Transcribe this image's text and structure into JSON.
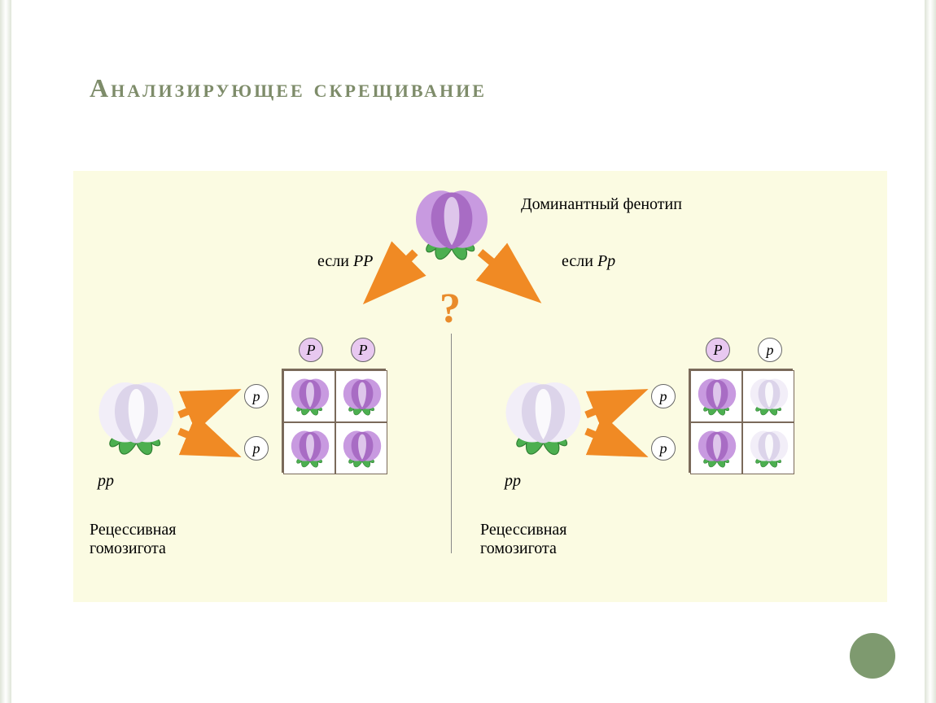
{
  "title": "Анализирующее скрещивание",
  "labels": {
    "dominant": "Доминантный фенотип",
    "ifPP": "если",
    "ifPP_g": "PP",
    "ifPp": "если",
    "ifPp_g": "Pp",
    "recessive": "Рецессивная\nгомозигота",
    "pp": "pp",
    "question": "?"
  },
  "colors": {
    "background": "#fbfbe2",
    "title": "#7e8c6a",
    "arrow": "#f08a24",
    "flower_purple_dark": "#a86cc4",
    "flower_purple_mid": "#c89ae0",
    "flower_purple_light": "#e8d6f2",
    "flower_white": "#f2eef8",
    "flower_white_shadow": "#dcd4ea",
    "leaf": "#4caf50",
    "leaf_dark": "#2e7d32",
    "gamete_purple_bg": "#e8c8f0",
    "gamete_white_bg": "#ffffff",
    "grid": "#7a6a5a",
    "qmark": "#e98b2b",
    "dot": "#7e9a6f"
  },
  "left": {
    "top_gametes": [
      "P",
      "P"
    ],
    "side_gametes": [
      "p",
      "p"
    ],
    "top_bg": [
      "purple",
      "purple"
    ],
    "cells": [
      [
        "purple",
        "purple"
      ],
      [
        "purple",
        "purple"
      ]
    ]
  },
  "right": {
    "top_gametes": [
      "P",
      "p"
    ],
    "side_gametes": [
      "p",
      "p"
    ],
    "top_bg": [
      "purple",
      "white"
    ],
    "cells": [
      [
        "purple",
        "white"
      ],
      [
        "purple",
        "white"
      ]
    ]
  }
}
